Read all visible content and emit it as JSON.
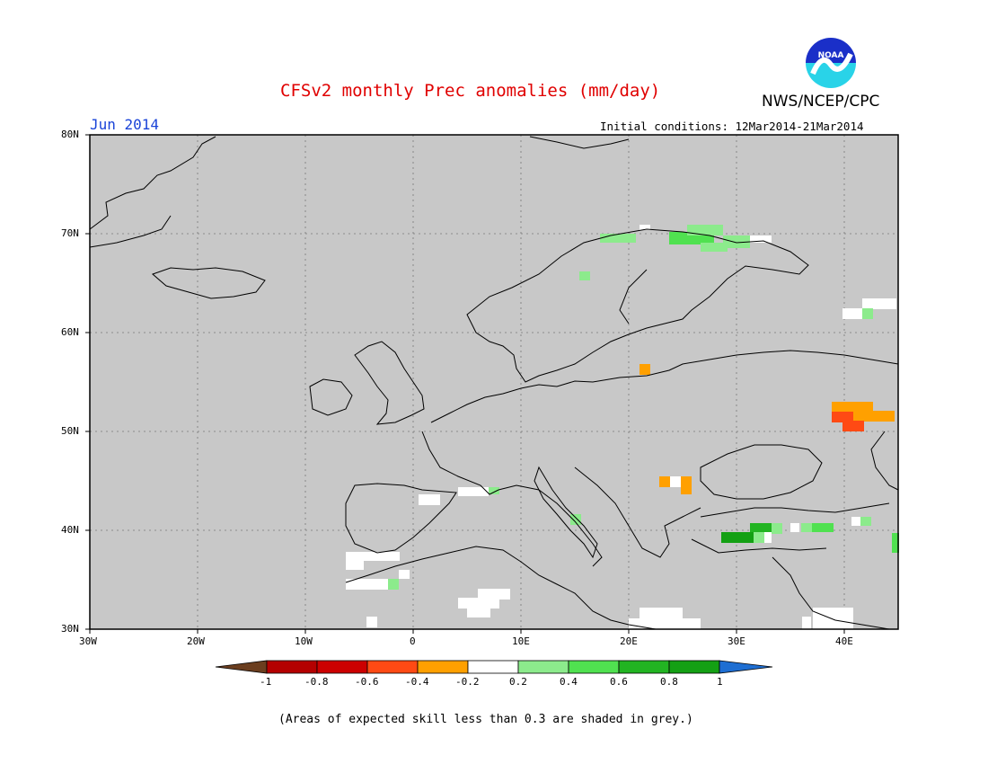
{
  "header": {
    "title": "CFSv2 monthly Prec anomalies (mm/day)",
    "agency": "NWS/NCEP/CPC",
    "month": "Jun 2014",
    "initial_conditions": "Initial conditions: 12Mar2014-21Mar2014",
    "logo_text": "NOAA"
  },
  "map": {
    "background_color": "#c8c8c8",
    "lat_labels": [
      "80N",
      "70N",
      "60N",
      "50N",
      "40N",
      "30N"
    ],
    "lon_labels": [
      "30W",
      "20W",
      "10W",
      "0",
      "10E",
      "20E",
      "30E",
      "40E"
    ]
  },
  "colorbar": {
    "labels": [
      "-1",
      "-0.8",
      "-0.6",
      "-0.4",
      "-0.2",
      "0.2",
      "0.4",
      "0.6",
      "0.8",
      "1"
    ],
    "colors": [
      "#6b3e1f",
      "#b40000",
      "#cc0000",
      "#ff4a14",
      "#ffa000",
      "#ffffff",
      "#8ceb8c",
      "#50e150",
      "#22b422",
      "#14a014",
      "#1e6ed2"
    ]
  },
  "footnote": "(Areas of expected skill less than 0.3 are shaded in grey.)"
}
